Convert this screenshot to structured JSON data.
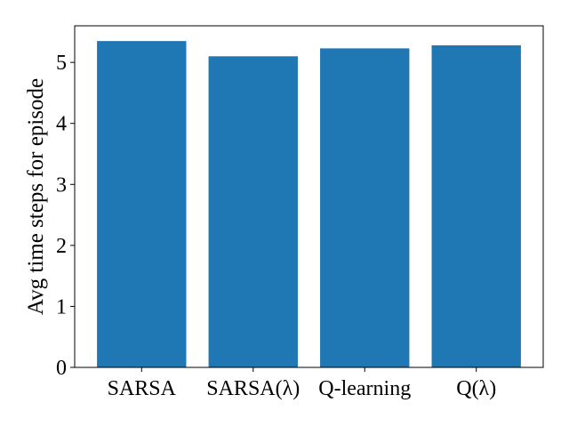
{
  "chart_data": {
    "type": "bar",
    "categories": [
      "SARSA",
      "SARSA(λ)",
      "Q-learning",
      "Q(λ)"
    ],
    "values": [
      5.35,
      5.1,
      5.23,
      5.28
    ],
    "title": "",
    "xlabel": "",
    "ylabel": "Avg time steps for episode",
    "ylim": [
      0,
      5.6
    ],
    "yticks": [
      0,
      1,
      2,
      3,
      4,
      5
    ],
    "grid": false,
    "legend": "none",
    "bar_color": "#1f77b4"
  }
}
